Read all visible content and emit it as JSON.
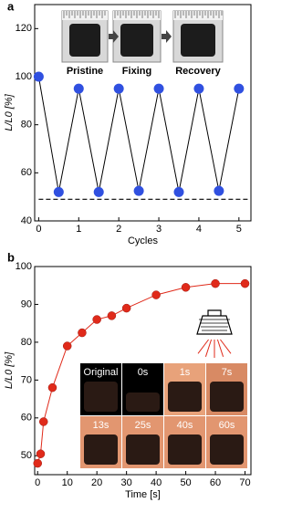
{
  "chart_data": [
    {
      "type": "line",
      "panel_label": "a",
      "x_label": "Cycles",
      "y_label": "L/L0 [%]",
      "x": [
        0,
        0.5,
        1,
        1.5,
        2,
        2.5,
        3,
        3.5,
        4,
        4.5,
        5
      ],
      "series": [
        {
          "color": "#3050e0",
          "values": [
            100,
            52,
            95,
            52,
            95,
            52.5,
            95,
            52,
            95,
            52.5,
            95
          ]
        }
      ],
      "line_color": "#000000",
      "reference_line": 49,
      "xlim": [
        -0.1,
        5.3
      ],
      "xticks": [
        0,
        1,
        2,
        3,
        4,
        5
      ],
      "ylim": [
        40,
        130
      ],
      "yticks": [
        40,
        60,
        80,
        100,
        120
      ],
      "photo_labels": [
        "Pristine",
        "Fixing",
        "Recovery"
      ]
    },
    {
      "type": "line",
      "panel_label": "b",
      "x_label": "Time [s]",
      "y_label": "L/L0 [%]",
      "x": [
        0,
        1,
        2,
        5,
        10,
        15,
        20,
        25,
        30,
        40,
        50,
        60,
        70
      ],
      "series": [
        {
          "color": "#e02a1a",
          "values": [
            48,
            50.5,
            59,
            68,
            79,
            82.5,
            86,
            87,
            89,
            92.5,
            94.5,
            95.5,
            95.5
          ]
        }
      ],
      "line_color": "#e02a1a",
      "xlim": [
        -1,
        72
      ],
      "xticks": [
        0,
        10,
        20,
        30,
        40,
        50,
        60,
        70
      ],
      "ylim": [
        45,
        100
      ],
      "yticks": [
        50,
        60,
        70,
        80,
        90,
        100
      ],
      "photo_labels": [
        "Original",
        "0s",
        "1s",
        "7s",
        "13s",
        "25s",
        "40s",
        "60s"
      ]
    }
  ]
}
